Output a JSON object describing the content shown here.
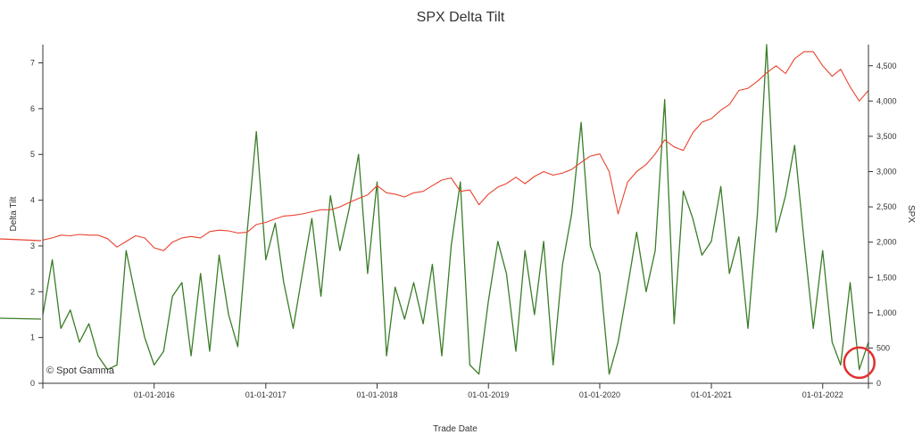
{
  "chart_data": {
    "type": "line",
    "title": "SPX Delta Tilt",
    "xlabel": "Trade Date",
    "ylabel_left": "Delta Tilt",
    "ylabel_right": "SPX",
    "watermark": "© Spot Gamma",
    "x_ticks": [
      "01-01-2016",
      "01-01-2017",
      "01-01-2018",
      "01-01-2019",
      "01-01-2020",
      "01-01-2021",
      "01-01-2022"
    ],
    "x_range": [
      "2015-01-01",
      "2022-05-31"
    ],
    "ylim_left": [
      0,
      7.4
    ],
    "y_ticks_left": [
      "0",
      "1",
      "2",
      "3",
      "4",
      "5",
      "6",
      "7"
    ],
    "ylim_right": [
      0,
      4800
    ],
    "y_ticks_right": [
      "0",
      "500",
      "1,000",
      "1,500",
      "2,000",
      "2,500",
      "3,000",
      "3,500",
      "4,000",
      "4,500"
    ],
    "grid": false,
    "colors": {
      "delta_tilt": "#3a7d27",
      "spx": "#e8432e",
      "highlight_circle": "#e03030"
    },
    "series": [
      {
        "name": "Delta Tilt",
        "axis": "left",
        "x": [
          "2015-01-01",
          "2015-02-01",
          "2015-03-01",
          "2015-04-01",
          "2015-05-01",
          "2015-06-01",
          "2015-07-01",
          "2015-08-01",
          "2015-09-01",
          "2015-10-01",
          "2015-11-01",
          "2015-12-01",
          "2016-01-01",
          "2016-02-01",
          "2016-03-01",
          "2016-04-01",
          "2016-05-01",
          "2016-06-01",
          "2016-07-01",
          "2016-08-01",
          "2016-09-01",
          "2016-10-01",
          "2016-11-01",
          "2016-12-01",
          "2017-01-01",
          "2017-02-01",
          "2017-03-01",
          "2017-04-01",
          "2017-05-01",
          "2017-06-01",
          "2017-07-01",
          "2017-08-01",
          "2017-09-01",
          "2017-10-01",
          "2017-11-01",
          "2017-12-01",
          "2018-01-01",
          "2018-02-01",
          "2018-03-01",
          "2018-04-01",
          "2018-05-01",
          "2018-06-01",
          "2018-07-01",
          "2018-08-01",
          "2018-09-01",
          "2018-10-01",
          "2018-11-01",
          "2018-12-01",
          "2019-01-01",
          "2019-02-01",
          "2019-03-01",
          "2019-04-01",
          "2019-05-01",
          "2019-06-01",
          "2019-07-01",
          "2019-08-01",
          "2019-09-01",
          "2019-10-01",
          "2019-11-01",
          "2019-12-01",
          "2020-01-01",
          "2020-02-01",
          "2020-03-01",
          "2020-04-01",
          "2020-05-01",
          "2020-06-01",
          "2020-07-01",
          "2020-08-01",
          "2020-09-01",
          "2020-10-01",
          "2020-11-01",
          "2020-12-01",
          "2021-01-01",
          "2021-02-01",
          "2021-03-01",
          "2021-04-01",
          "2021-05-01",
          "2021-06-01",
          "2021-07-01",
          "2021-08-01",
          "2021-09-01",
          "2021-10-01",
          "2021-11-01",
          "2021-12-01",
          "2022-01-01",
          "2022-02-01",
          "2022-03-01",
          "2022-04-01",
          "2022-05-01",
          "2022-05-31"
        ],
        "values": [
          1.5,
          2.7,
          1.2,
          1.6,
          0.9,
          1.3,
          0.6,
          0.3,
          0.4,
          2.9,
          1.9,
          1.0,
          0.4,
          0.7,
          1.9,
          2.2,
          0.6,
          2.4,
          0.7,
          2.8,
          1.5,
          0.8,
          3.3,
          5.5,
          2.7,
          3.5,
          2.2,
          1.2,
          2.4,
          3.6,
          1.9,
          4.1,
          2.9,
          3.8,
          5.0,
          2.4,
          4.4,
          0.6,
          2.1,
          1.4,
          2.2,
          1.3,
          2.6,
          0.6,
          3.0,
          4.4,
          0.4,
          0.2,
          1.8,
          3.1,
          2.4,
          0.7,
          2.9,
          1.5,
          3.1,
          0.4,
          2.6,
          3.7,
          5.7,
          3.0,
          2.4,
          0.2,
          0.9,
          2.1,
          3.3,
          2.0,
          2.9,
          6.2,
          1.3,
          4.2,
          3.6,
          2.8,
          3.1,
          4.3,
          2.4,
          3.2,
          1.2,
          3.7,
          7.4,
          3.3,
          4.1,
          5.2,
          3.1,
          1.2,
          2.9,
          0.9,
          0.4,
          2.2,
          0.3,
          0.9
        ]
      },
      {
        "name": "SPX",
        "axis": "right",
        "x": [
          "2015-01-01",
          "2015-02-01",
          "2015-03-01",
          "2015-04-01",
          "2015-05-01",
          "2015-06-01",
          "2015-07-01",
          "2015-08-01",
          "2015-09-01",
          "2015-10-01",
          "2015-11-01",
          "2015-12-01",
          "2016-01-01",
          "2016-02-01",
          "2016-03-01",
          "2016-04-01",
          "2016-05-01",
          "2016-06-01",
          "2016-07-01",
          "2016-08-01",
          "2016-09-01",
          "2016-10-01",
          "2016-11-01",
          "2016-12-01",
          "2017-01-01",
          "2017-02-01",
          "2017-03-01",
          "2017-04-01",
          "2017-05-01",
          "2017-06-01",
          "2017-07-01",
          "2017-08-01",
          "2017-09-01",
          "2017-10-01",
          "2017-11-01",
          "2017-12-01",
          "2018-01-01",
          "2018-02-01",
          "2018-03-01",
          "2018-04-01",
          "2018-05-01",
          "2018-06-01",
          "2018-07-01",
          "2018-08-01",
          "2018-09-01",
          "2018-10-01",
          "2018-11-01",
          "2018-12-01",
          "2019-01-01",
          "2019-02-01",
          "2019-03-01",
          "2019-04-01",
          "2019-05-01",
          "2019-06-01",
          "2019-07-01",
          "2019-08-01",
          "2019-09-01",
          "2019-10-01",
          "2019-11-01",
          "2019-12-01",
          "2020-01-01",
          "2020-02-01",
          "2020-03-01",
          "2020-04-01",
          "2020-05-01",
          "2020-06-01",
          "2020-07-01",
          "2020-08-01",
          "2020-09-01",
          "2020-10-01",
          "2020-11-01",
          "2020-12-01",
          "2021-01-01",
          "2021-02-01",
          "2021-03-01",
          "2021-04-01",
          "2021-05-01",
          "2021-06-01",
          "2021-07-01",
          "2021-08-01",
          "2021-09-01",
          "2021-10-01",
          "2021-11-01",
          "2021-12-01",
          "2022-01-01",
          "2022-02-01",
          "2022-03-01",
          "2022-04-01",
          "2022-05-01",
          "2022-05-31"
        ],
        "values": [
          2030,
          2060,
          2100,
          2090,
          2110,
          2100,
          2100,
          2050,
          1930,
          2010,
          2090,
          2060,
          1920,
          1880,
          2000,
          2060,
          2080,
          2060,
          2150,
          2170,
          2160,
          2130,
          2140,
          2250,
          2280,
          2330,
          2370,
          2380,
          2400,
          2430,
          2460,
          2460,
          2500,
          2560,
          2620,
          2670,
          2800,
          2700,
          2680,
          2640,
          2700,
          2720,
          2800,
          2880,
          2910,
          2720,
          2740,
          2530,
          2680,
          2780,
          2830,
          2920,
          2830,
          2930,
          3000,
          2950,
          2980,
          3030,
          3130,
          3220,
          3250,
          3000,
          2400,
          2850,
          3000,
          3100,
          3250,
          3450,
          3350,
          3300,
          3550,
          3700,
          3750,
          3870,
          3950,
          4150,
          4180,
          4280,
          4400,
          4500,
          4390,
          4600,
          4700,
          4700,
          4500,
          4350,
          4450,
          4200,
          4000,
          4150
        ]
      }
    ],
    "annotations": [
      {
        "type": "circle",
        "x": "2022-05-01",
        "y_left": 0.45,
        "label": ""
      }
    ]
  }
}
